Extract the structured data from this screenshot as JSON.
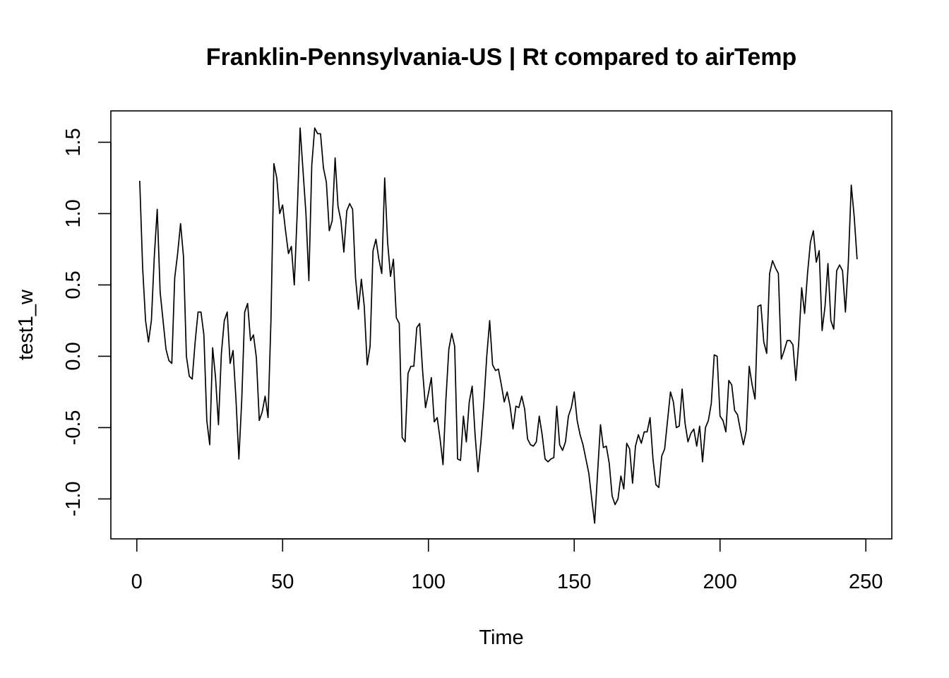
{
  "chart_data": {
    "type": "line",
    "title": "Franklin-Pennsylvania-US | Rt compared to airTemp",
    "xlabel": "Time",
    "ylabel": "test1_w",
    "xlim": [
      -8.9,
      258.9
    ],
    "ylim": [
      -1.28,
      1.72
    ],
    "x_ticks": [
      0,
      50,
      100,
      150,
      200,
      250
    ],
    "x_tick_labels": [
      "0",
      "50",
      "100",
      "150",
      "200",
      "250"
    ],
    "y_ticks": [
      -1.0,
      -0.5,
      0.0,
      0.5,
      1.0,
      1.5
    ],
    "y_tick_labels": [
      "-1.0",
      "-0.5",
      "0.0",
      "0.5",
      "1.0",
      "1.5"
    ],
    "grid": false,
    "line_color": "#000000",
    "series": [
      {
        "x_start": 1,
        "x_step": 1,
        "values": [
          1.23,
          0.62,
          0.25,
          0.1,
          0.25,
          0.7,
          1.03,
          0.45,
          0.25,
          0.05,
          -0.03,
          -0.05,
          0.55,
          0.72,
          0.93,
          0.7,
          0.0,
          -0.14,
          -0.16,
          0.1,
          0.31,
          0.31,
          0.15,
          -0.45,
          -0.62,
          0.06,
          -0.15,
          -0.48,
          0.02,
          0.25,
          0.31,
          -0.05,
          0.04,
          -0.3,
          -0.72,
          -0.3,
          0.31,
          0.37,
          0.11,
          0.15,
          -0.01,
          -0.45,
          -0.39,
          -0.28,
          -0.43,
          0.25,
          1.35,
          1.25,
          1.0,
          1.06,
          0.88,
          0.72,
          0.77,
          0.5,
          1.0,
          1.6,
          1.3,
          1.0,
          0.53,
          1.34,
          1.6,
          1.56,
          1.56,
          1.32,
          1.22,
          0.88,
          0.95,
          1.39,
          1.05,
          0.95,
          0.73,
          1.02,
          1.07,
          1.03,
          0.55,
          0.33,
          0.54,
          0.35,
          -0.06,
          0.07,
          0.74,
          0.82,
          0.68,
          0.58,
          1.25,
          0.8,
          0.56,
          0.68,
          0.27,
          0.23,
          -0.57,
          -0.6,
          -0.12,
          -0.07,
          -0.07,
          0.2,
          0.23,
          -0.1,
          -0.36,
          -0.26,
          -0.15,
          -0.46,
          -0.43,
          -0.58,
          -0.76,
          -0.3,
          0.05,
          0.16,
          0.07,
          -0.72,
          -0.73,
          -0.42,
          -0.6,
          -0.32,
          -0.21,
          -0.55,
          -0.81,
          -0.6,
          -0.33,
          0.0,
          0.25,
          -0.06,
          -0.1,
          -0.09,
          -0.2,
          -0.32,
          -0.25,
          -0.35,
          -0.51,
          -0.35,
          -0.36,
          -0.28,
          -0.37,
          -0.58,
          -0.62,
          -0.63,
          -0.6,
          -0.42,
          -0.55,
          -0.72,
          -0.74,
          -0.72,
          -0.71,
          -0.35,
          -0.62,
          -0.66,
          -0.6,
          -0.42,
          -0.36,
          -0.25,
          -0.45,
          -0.55,
          -0.62,
          -0.72,
          -0.82,
          -1.0,
          -1.17,
          -0.82,
          -0.48,
          -0.64,
          -0.63,
          -0.75,
          -0.98,
          -1.04,
          -1.0,
          -0.84,
          -0.93,
          -0.61,
          -0.65,
          -0.89,
          -0.63,
          -0.55,
          -0.61,
          -0.53,
          -0.53,
          -0.43,
          -0.72,
          -0.9,
          -0.92,
          -0.7,
          -0.65,
          -0.45,
          -0.25,
          -0.32,
          -0.5,
          -0.49,
          -0.23,
          -0.47,
          -0.6,
          -0.54,
          -0.51,
          -0.63,
          -0.49,
          -0.74,
          -0.5,
          -0.45,
          -0.33,
          0.01,
          0.0,
          -0.42,
          -0.45,
          -0.53,
          -0.17,
          -0.2,
          -0.38,
          -0.41,
          -0.52,
          -0.62,
          -0.52,
          -0.07,
          -0.2,
          -0.3,
          0.35,
          0.36,
          0.1,
          0.02,
          0.58,
          0.67,
          0.62,
          0.58,
          -0.02,
          0.04,
          0.11,
          0.11,
          0.08,
          -0.17,
          0.1,
          0.48,
          0.3,
          0.58,
          0.8,
          0.88,
          0.66,
          0.74,
          0.18,
          0.35,
          0.65,
          0.25,
          0.19,
          0.6,
          0.64,
          0.6,
          0.31,
          0.66,
          1.2,
          0.98,
          0.68
        ]
      }
    ]
  }
}
